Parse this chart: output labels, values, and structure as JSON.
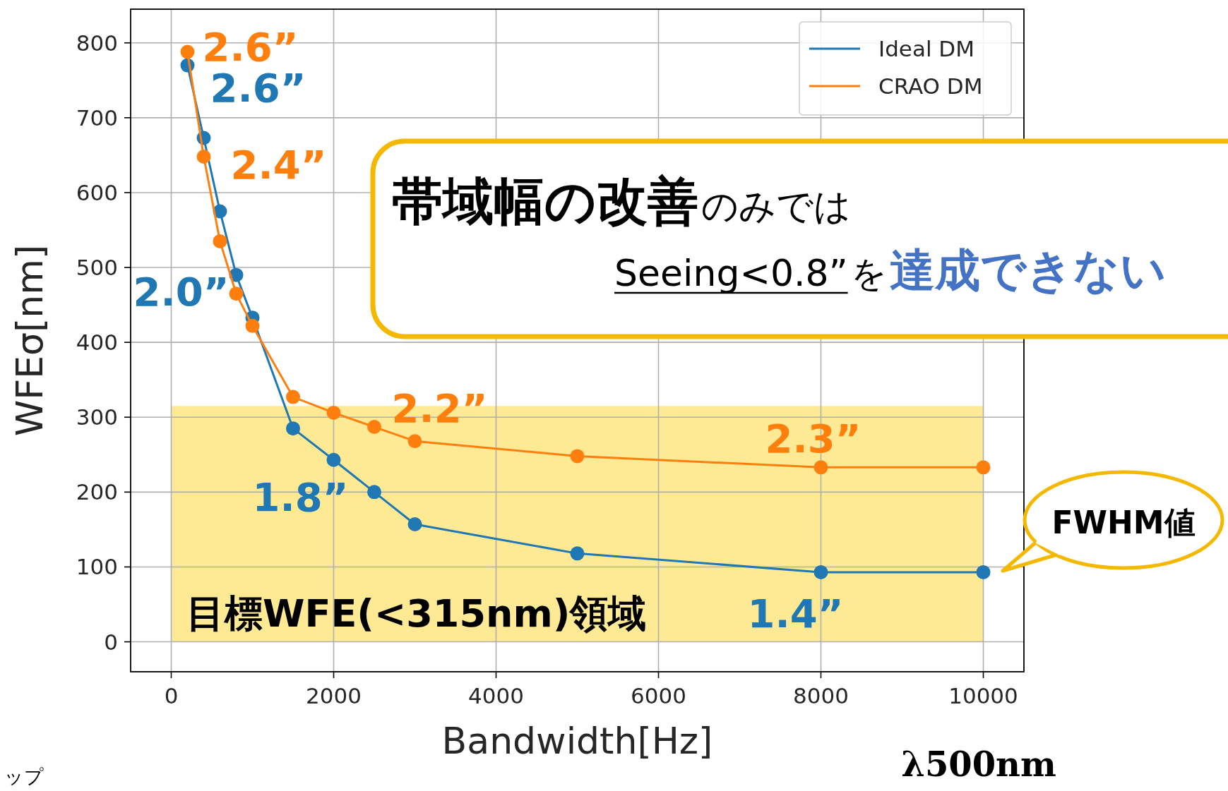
{
  "chart_data": {
    "type": "line",
    "xlabel": "Bandwidth[Hz]",
    "ylabel": "WFEσ[nm]",
    "xlim": [
      -500,
      10500
    ],
    "xticks": [
      0,
      2000,
      4000,
      6000,
      8000,
      10000
    ],
    "ylim": [
      -40,
      845
    ],
    "yticks": [
      0,
      100,
      200,
      300,
      400,
      500,
      600,
      700,
      800
    ],
    "grid": true,
    "legend": "top right",
    "marker": "circle",
    "series": [
      {
        "name": "Ideal DM",
        "color": "#1f77b4",
        "x": [
          200,
          400,
          600,
          800,
          1000,
          1500,
          2000,
          2500,
          3000,
          5000,
          8000,
          10000
        ],
        "values": [
          770,
          673,
          575,
          490,
          433,
          285,
          243,
          200,
          157,
          118,
          93,
          93
        ]
      },
      {
        "name": "CRAO DM",
        "color": "#ff7f0e",
        "x": [
          200,
          400,
          600,
          800,
          1000,
          1500,
          2000,
          2500,
          3000,
          5000,
          8000,
          10000
        ],
        "values": [
          788,
          648,
          535,
          465,
          422,
          327,
          306,
          287,
          268,
          248,
          233,
          233
        ]
      }
    ],
    "bands": [
      {
        "axis": "y",
        "from": 0,
        "to": 315,
        "label": "目標WFE(<315nm)領域",
        "color": "#feea94"
      }
    ],
    "annotations": [
      "帯域幅の改善",
      "のみでは",
      "Seeing<0.8”",
      "を",
      "達成できない",
      "FWHM値",
      "λ500nm",
      "ップ",
      {
        "text": "2.6”",
        "x": 200,
        "y": 770
      },
      {
        "text": "2.0”",
        "x": 800,
        "y": 490
      },
      {
        "text": "1.8”",
        "x": 2000,
        "y": 243
      },
      {
        "text": "1.4”",
        "x": 8000,
        "y": 93
      },
      {
        "text": "2.6”",
        "x": 200,
        "y": 788
      },
      {
        "text": "2.4”",
        "x": 400,
        "y": 648
      },
      {
        "text": "2.2”",
        "x": 3000,
        "y": 268
      },
      {
        "text": "2.3”",
        "x": 8000,
        "y": 233
      }
    ]
  }
}
